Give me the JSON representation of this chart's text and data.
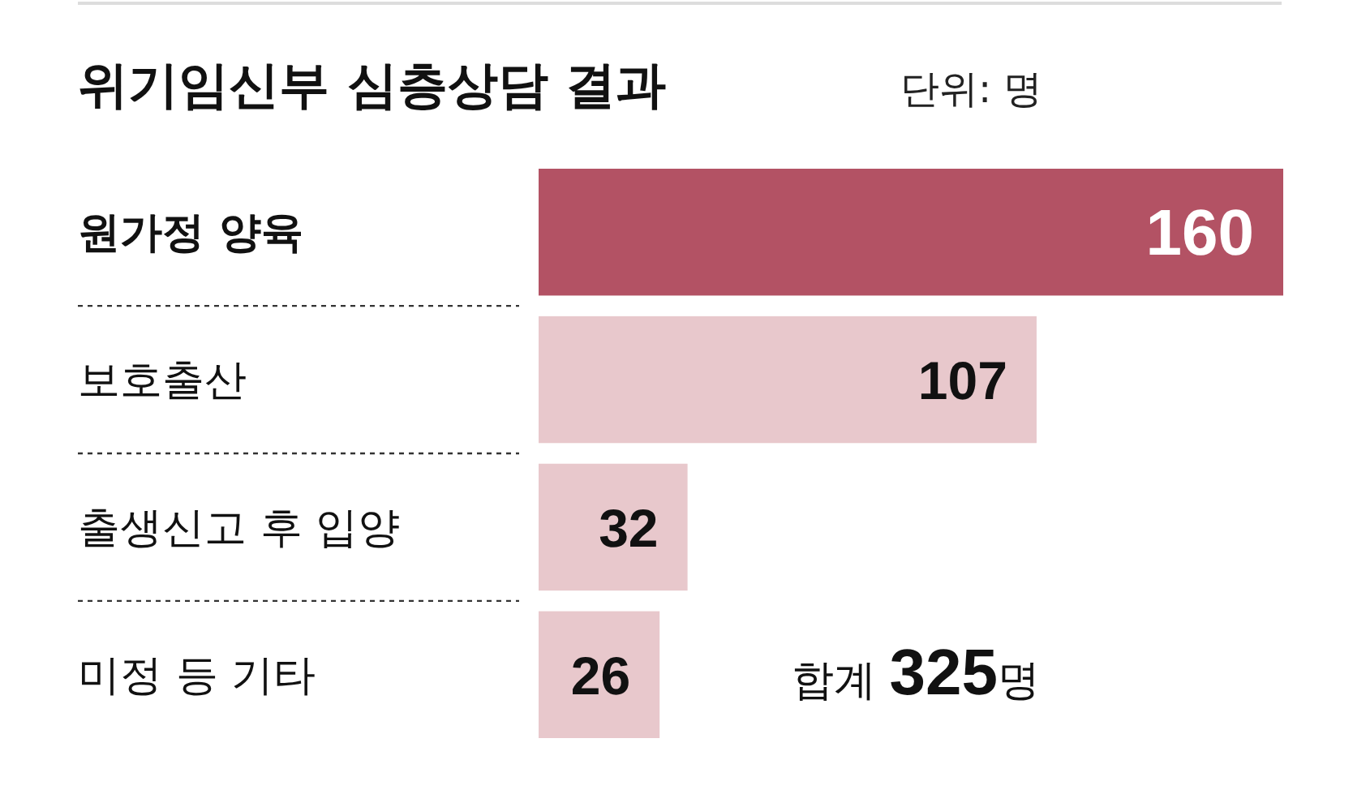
{
  "chart_data": {
    "type": "bar",
    "orientation": "horizontal",
    "title": "위기임신부 심층상담 결과",
    "subtitle": "단위: 명",
    "categories": [
      "원가정 양육",
      "보호출산",
      "출생신고 후 입양",
      "미정 등 기타"
    ],
    "values": [
      160,
      107,
      32,
      26
    ],
    "colors": [
      "#b35264",
      "#e8c8cc",
      "#e8c8cc",
      "#e8c8cc"
    ],
    "data_labels": true,
    "annotations": [
      "합계 325명"
    ]
  }
}
